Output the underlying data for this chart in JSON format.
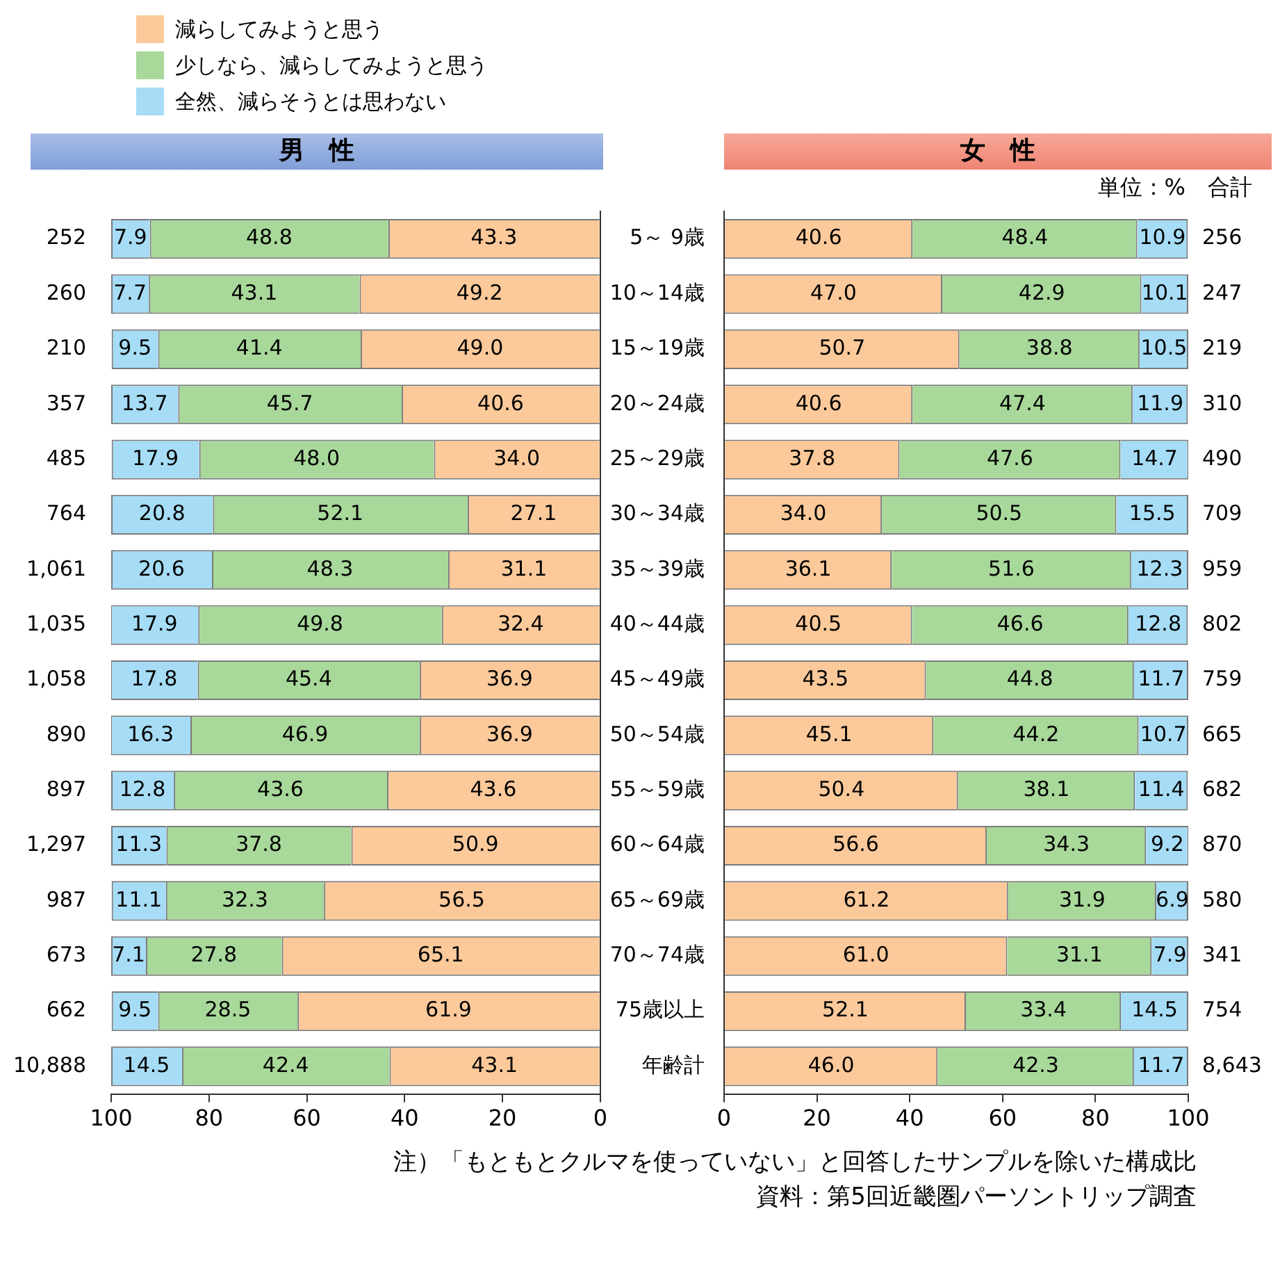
{
  "chart_data": [
    {
      "type": "bar",
      "title": "男　性",
      "orientation": "horizontal",
      "stacked": true,
      "legend": "top left",
      "grid": false,
      "tick_labels": "x",
      "categories": [
        null,
        null,
        null,
        null,
        null,
        null,
        null,
        null,
        null,
        null,
        null,
        null,
        null,
        null,
        null,
        null
      ],
      "xlim": [
        100,
        0
      ],
      "xticks": [
        100,
        80,
        60,
        40,
        20,
        0
      ],
      "series": [
        {
          "name": "減らしてみようと思う",
          "color": "#fbc99a",
          "values": [
            43.3,
            49.2,
            49.0,
            40.6,
            34.0,
            27.1,
            31.1,
            32.4,
            36.9,
            36.9,
            43.6,
            50.9,
            56.5,
            65.1,
            61.9,
            43.1
          ],
          "value_labels": [
            "43.3",
            "49.2",
            "49.0",
            "40.6",
            "34.0",
            "27.1",
            "31.1",
            "32.4",
            "36.9",
            "36.9",
            "43.6",
            "50.9",
            "56.5",
            "65.1",
            "61.9",
            "43.1"
          ]
        },
        {
          "name": "少しなら、減らしてみようと思う",
          "color": "#a8d89a",
          "values": [
            48.8,
            43.1,
            41.4,
            45.7,
            48.0,
            52.1,
            48.3,
            49.8,
            45.4,
            46.9,
            43.6,
            37.8,
            32.3,
            27.8,
            28.5,
            42.4
          ],
          "value_labels": [
            "48.8",
            "43.1",
            "41.4",
            "45.7",
            "48.0",
            "52.1",
            "48.3",
            "49.8",
            "45.4",
            "46.9",
            "43.6",
            "37.8",
            "32.3",
            "27.8",
            "28.5",
            "42.4"
          ]
        },
        {
          "name": "全然、減らそうとは思わない",
          "color": "#a6dcf5",
          "values": [
            7.9,
            7.7,
            9.5,
            13.7,
            17.9,
            20.8,
            20.6,
            17.9,
            17.8,
            16.3,
            12.8,
            11.3,
            11.1,
            7.1,
            9.5,
            14.5
          ],
          "value_labels": [
            "7.9",
            "7.7",
            "9.5",
            "13.7",
            "17.9",
            "20.8",
            "20.6",
            "17.9",
            "17.8",
            "16.3",
            "12.8",
            "11.3",
            "11.1",
            "7.1",
            "9.5",
            "14.5"
          ]
        }
      ],
      "annotations": [
        "252",
        "260",
        "210",
        "357",
        "485",
        "764",
        "1,061",
        "1,035",
        "1,058",
        "890",
        "897",
        "1,297",
        "987",
        "673",
        "662",
        "10,888"
      ]
    },
    {
      "type": "bar",
      "title": "女　性",
      "orientation": "horizontal",
      "stacked": true,
      "grid": false,
      "categories": [
        "5～ 9歳",
        "10～14歳",
        "15～19歳",
        "20～24歳",
        "25～29歳",
        "30～34歳",
        "35～39歳",
        "40～44歳",
        "45～49歳",
        "50～54歳",
        "55～59歳",
        "60～64歳",
        "65～69歳",
        "70～74歳",
        "75歳以上",
        "年齢計"
      ],
      "xlim": [
        0,
        100
      ],
      "xticks": [
        0,
        20,
        40,
        60,
        80,
        100
      ],
      "series": [
        {
          "color": "#fbc99a",
          "values": [
            40.6,
            47.0,
            50.7,
            40.6,
            37.8,
            34.0,
            36.1,
            40.5,
            43.5,
            45.1,
            50.4,
            56.6,
            61.2,
            61.0,
            52.1,
            46.0
          ],
          "value_labels": [
            "40.6",
            "47.0",
            "50.7",
            "40.6",
            "37.8",
            "34.0",
            "36.1",
            "40.5",
            "43.5",
            "45.1",
            "50.4",
            "56.6",
            "61.2",
            "61.0",
            "52.1",
            "46.0"
          ]
        },
        {
          "color": "#a8d89a",
          "values": [
            48.4,
            42.9,
            38.8,
            47.4,
            47.6,
            50.5,
            51.6,
            46.6,
            44.8,
            44.2,
            38.1,
            34.3,
            31.9,
            31.1,
            33.4,
            42.3
          ],
          "value_labels": [
            "48.4",
            "42.9",
            "38.8",
            "47.4",
            "47.6",
            "50.5",
            "51.6",
            "46.6",
            "44.8",
            "44.2",
            "38.1",
            "34.3",
            "31.9",
            "31.1",
            "33.4",
            "42.3"
          ]
        },
        {
          "color": "#a6dcf5",
          "values": [
            10.9,
            10.1,
            10.5,
            11.9,
            14.7,
            15.5,
            12.3,
            12.8,
            11.7,
            10.7,
            11.4,
            9.2,
            6.9,
            7.9,
            14.5,
            11.7
          ],
          "value_labels": [
            "10.9",
            "10.1",
            "10.5",
            "11.9",
            "14.7",
            "15.5",
            "12.3",
            "12.8",
            "11.7",
            "10.7",
            "11.4",
            "9.2",
            "6.9",
            "7.9",
            "14.5",
            "11.7"
          ]
        }
      ],
      "annotations": [
        "256",
        "247",
        "219",
        "310",
        "490",
        "709",
        "959",
        "802",
        "759",
        "665",
        "682",
        "870",
        "580",
        "341",
        "754",
        "8,643",
        "単位：%",
        "合計",
        "注）「もともとクルマを使っていない」と回答したサンプルを除いた構成比",
        "資料：第5回近畿圏パーソントリップ調査"
      ]
    }
  ]
}
